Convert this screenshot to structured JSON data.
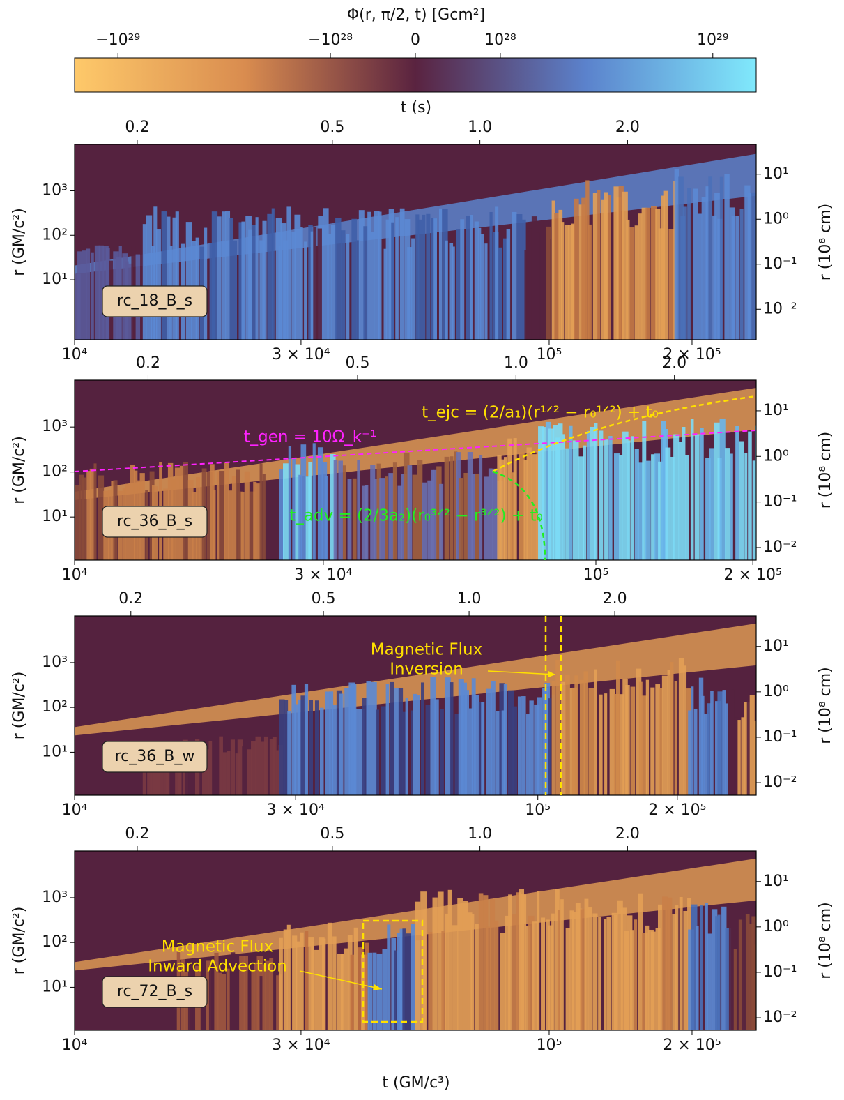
{
  "colorbar": {
    "label": "Φ(r, π/2, t) [Gcm²]",
    "scale": "symlog",
    "linthresh": 1e+28,
    "linscale": 0.4,
    "clim": [
      -1.6e+29,
      1.6e+29
    ],
    "ticks": [
      {
        "value": -1e+29,
        "label": "−10²⁹"
      },
      {
        "value": -1e+28,
        "label": "−10²⁸"
      },
      0,
      {
        "value": 1e+28,
        "label": "10²⁸"
      },
      {
        "value": 1e+29,
        "label": "10²⁹"
      }
    ],
    "colors": [
      "#fec96a",
      "#d98c4f",
      "#5a2340",
      "#5b82cc",
      "#80e9fc"
    ]
  },
  "chart_data": [
    {
      "type": "heatmap",
      "label": "rc_18_B_s",
      "ylabel": "r (GM/c²)",
      "y2label": "r (10⁸ cm)",
      "x2label": "t (s)",
      "xscale": "log",
      "yscale": "log",
      "xlim": [
        10000,
        273000
      ],
      "xticks": [
        {
          "value": 10000,
          "label": "10⁴"
        },
        {
          "value": 30000,
          "label": "3 × 10⁴"
        },
        {
          "value": 100000,
          "label": "10⁵"
        },
        {
          "value": 200000,
          "label": "2 × 10⁵"
        }
      ],
      "x2lim": [
        0.149,
        3.66
      ],
      "x2ticks": [
        0.2,
        0.5,
        {
          "value": 1.0,
          "label": "1.0"
        },
        {
          "value": 2.0,
          "label": "2.0"
        }
      ],
      "ylim": [
        0.45,
        11000
      ],
      "yticks": [
        {
          "value": 10,
          "label": "10¹"
        },
        {
          "value": 100,
          "label": "10²"
        },
        {
          "value": 1000,
          "label": "10³"
        }
      ],
      "y2lim": [
        0.0021,
        46
      ],
      "y2ticks": [
        {
          "value": 0.01,
          "label": "10⁻²"
        },
        {
          "value": 0.1,
          "label": "10⁻¹"
        },
        {
          "value": 1,
          "label": "10⁰"
        },
        {
          "value": 10,
          "label": "10¹"
        }
      ]
    },
    {
      "type": "heatmap",
      "label": "rc_36_B_s",
      "ylabel": "r (GM/c²)",
      "y2label": "r (10⁸ cm)",
      "xscale": "log",
      "yscale": "log",
      "xlim": [
        10000,
        203000
      ],
      "xticks": [
        {
          "value": 10000,
          "label": "10⁴"
        },
        {
          "value": 30000,
          "label": "3 × 10⁴"
        },
        {
          "value": 100000,
          "label": "10⁵"
        },
        {
          "value": 200000,
          "label": "2 × 10⁵"
        }
      ],
      "x2lim": [
        0.145,
        2.86
      ],
      "x2ticks": [
        0.2,
        0.5,
        {
          "value": 1.0,
          "label": "1.0"
        },
        {
          "value": 2.0,
          "label": "2.0"
        }
      ],
      "ylim": [
        1.1,
        11000
      ],
      "yticks": [
        {
          "value": 10,
          "label": "10¹"
        },
        {
          "value": 100,
          "label": "10²"
        },
        {
          "value": 1000,
          "label": "10³"
        }
      ],
      "y2lim": [
        0.0053,
        47
      ],
      "y2ticks": [
        {
          "value": 0.01,
          "label": "10⁻²"
        },
        {
          "value": 0.1,
          "label": "10⁻¹"
        },
        {
          "value": 1,
          "label": "10⁰"
        },
        {
          "value": 10,
          "label": "10¹"
        }
      ],
      "annotations": [
        {
          "text": [
            "t_gen = 10Ω_k⁻¹"
          ],
          "color": "#ff22ff"
        },
        {
          "text": [
            "t_ejc = (2/a₁)(r¹ᐟ² − r₀¹ᐟ²) + t₀"
          ],
          "color": "#ffe000"
        },
        {
          "text": [
            "t_adv = (2/3a₂)(r₀³ᐟ² − r³ᐟ²) + t₀"
          ],
          "color": "#22ee22"
        }
      ]
    },
    {
      "type": "heatmap",
      "label": "rc_36_B_w",
      "ylabel": "r (GM/c²)",
      "y2label": "r (10⁸ cm)",
      "xscale": "log",
      "yscale": "log",
      "xlim": [
        10000,
        296000
      ],
      "xticks": [
        {
          "value": 10000,
          "label": "10⁴"
        },
        {
          "value": 30000,
          "label": "3 × 10⁴"
        },
        {
          "value": 100000,
          "label": "10⁵"
        },
        {
          "value": 200000,
          "label": "2 × 10⁵"
        }
      ],
      "x2lim": [
        0.153,
        3.92
      ],
      "x2ticks": [
        0.2,
        0.5,
        {
          "value": 1.0,
          "label": "1.0"
        },
        {
          "value": 2.0,
          "label": "2.0"
        }
      ],
      "ylim": [
        1.1,
        11000
      ],
      "yticks": [
        {
          "value": 10,
          "label": "10¹"
        },
        {
          "value": 100,
          "label": "10²"
        },
        {
          "value": 1000,
          "label": "10³"
        }
      ],
      "y2lim": [
        0.0053,
        47
      ],
      "y2ticks": [
        {
          "value": 0.01,
          "label": "10⁻²"
        },
        {
          "value": 0.1,
          "label": "10⁻¹"
        },
        {
          "value": 1,
          "label": "10⁰"
        },
        {
          "value": 10,
          "label": "10¹"
        }
      ],
      "annotations": [
        {
          "text": [
            "Magnetic Flux",
            "Inversion"
          ],
          "color": "#ffe000"
        }
      ]
    },
    {
      "type": "heatmap",
      "label": "rc_72_B_s",
      "xlabel": "t (GM/c³)",
      "ylabel": "r (GM/c²)",
      "y2label": "r (10⁸ cm)",
      "xscale": "log",
      "yscale": "log",
      "xlim": [
        10000,
        273000
      ],
      "xticks": [
        {
          "value": 10000,
          "label": "10⁴"
        },
        {
          "value": 30000,
          "label": "3 × 10⁴"
        },
        {
          "value": 100000,
          "label": "10⁵"
        },
        {
          "value": 200000,
          "label": "2 × 10⁵"
        }
      ],
      "x2lim": [
        0.149,
        3.66
      ],
      "x2ticks": [
        0.2,
        0.5,
        {
          "value": 1.0,
          "label": "1.0"
        },
        {
          "value": 2.0,
          "label": "2.0"
        }
      ],
      "ylim": [
        1.1,
        11000
      ],
      "yticks": [
        {
          "value": 10,
          "label": "10¹"
        },
        {
          "value": 100,
          "label": "10²"
        },
        {
          "value": 1000,
          "label": "10³"
        }
      ],
      "y2lim": [
        0.0053,
        47
      ],
      "y2ticks": [
        {
          "value": 0.01,
          "label": "10⁻²"
        },
        {
          "value": 0.1,
          "label": "10⁻¹"
        },
        {
          "value": 1,
          "label": "10⁰"
        },
        {
          "value": 10,
          "label": "10¹"
        }
      ],
      "annotations": [
        {
          "text": [
            "Magnetic Flux",
            "Inward Advection"
          ],
          "color": "#ffe000"
        }
      ]
    }
  ]
}
